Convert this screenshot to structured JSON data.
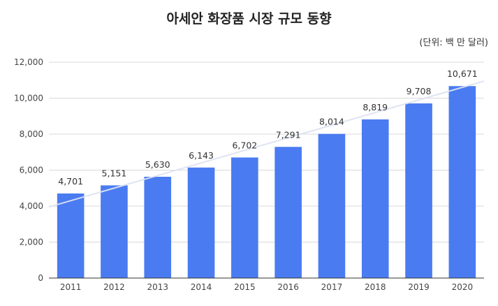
{
  "chart_data": {
    "type": "bar",
    "title": "아세안 화장품 시장 규모 동향",
    "unit_note": "(단위: 백 만 달러)",
    "categories": [
      "2011",
      "2012",
      "2013",
      "2014",
      "2015",
      "2016",
      "2017",
      "2018",
      "2019",
      "2020"
    ],
    "values": [
      4701,
      5151,
      5630,
      6143,
      6702,
      7291,
      8014,
      8819,
      9708,
      10671
    ],
    "value_labels": [
      "4,701",
      "5,151",
      "5,630",
      "6,143",
      "6,702",
      "7,291",
      "8,014",
      "8,819",
      "9,708",
      "10,671"
    ],
    "yticks": [
      0,
      2000,
      4000,
      6000,
      8000,
      10000,
      12000
    ],
    "ytick_labels": [
      "0",
      "2,000",
      "4,000",
      "6,000",
      "8,000",
      "10,000",
      "12,000"
    ],
    "ylim": [
      0,
      12000
    ],
    "trendline": {
      "start_value": 3950,
      "end_value": 10950
    },
    "xlabel": "",
    "ylabel": "",
    "grid": true,
    "legend": "none",
    "colors": {
      "bar": "#4a7bf1",
      "grid": "#d9d9d9",
      "trend": "#dde3f3",
      "axis": "#333333"
    }
  }
}
